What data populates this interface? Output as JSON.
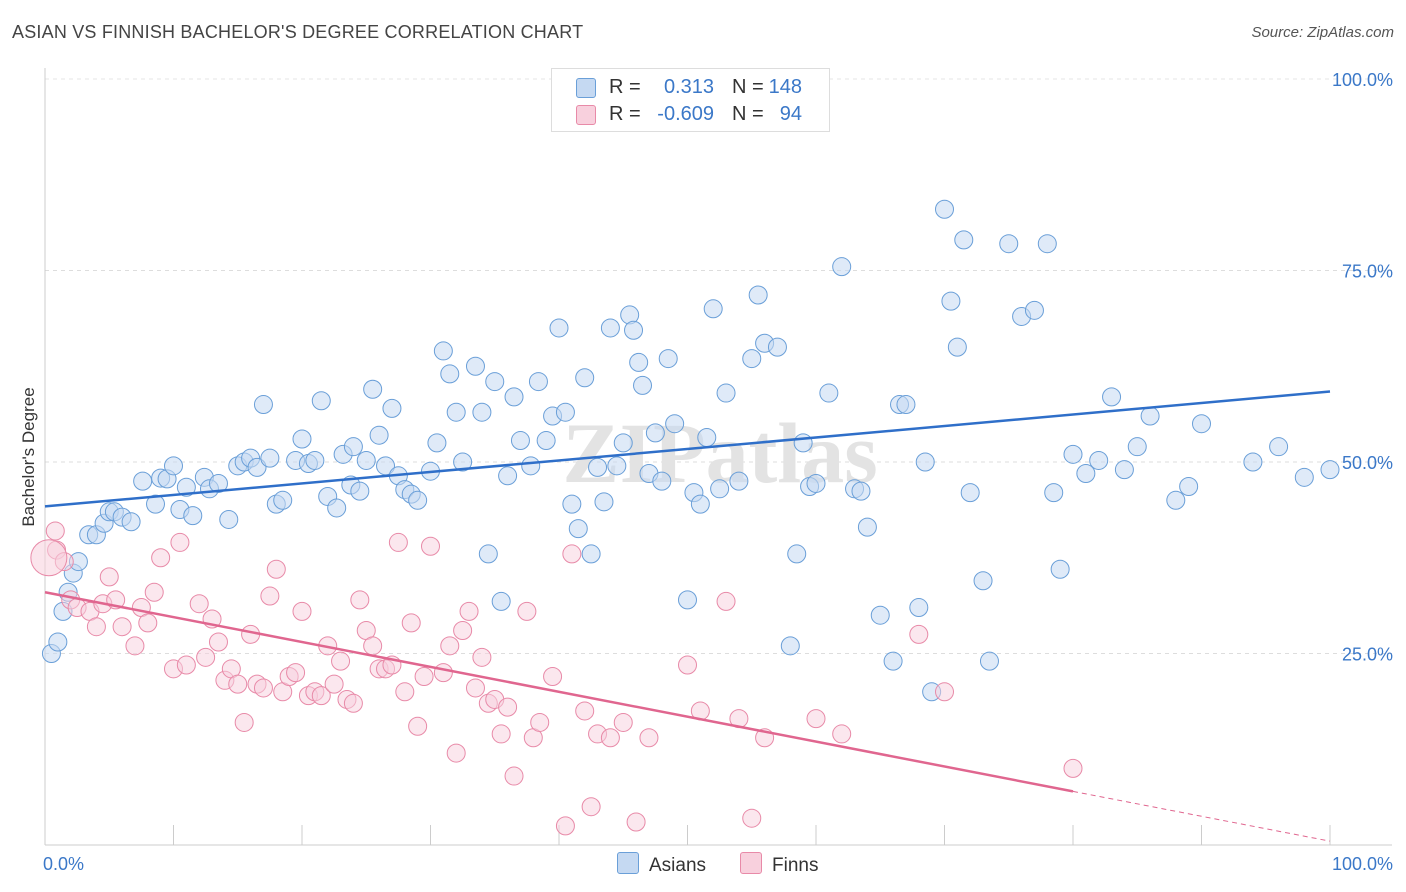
{
  "title": "ASIAN VS FINNISH BACHELOR'S DEGREE CORRELATION CHART",
  "source": "Source: ZipAtlas.com",
  "watermark": "ZIPatlas",
  "legend": {
    "rows": [
      {
        "r_label": "R =",
        "r_value": "0.313",
        "n_label": "N =",
        "n_value": "148",
        "color": "#6a9fd8"
      },
      {
        "r_label": "R =",
        "r_value": "-0.609",
        "n_label": "N =",
        "n_value": "94",
        "color": "#e88aa8"
      }
    ]
  },
  "bottom_legend": [
    {
      "label": "Asians",
      "color": "#6a9fd8"
    },
    {
      "label": "Finns",
      "color": "#e88aa8"
    }
  ],
  "chart_data": {
    "type": "scatter",
    "title": "ASIAN VS FINNISH BACHELOR'S DEGREE CORRELATION CHART",
    "xlabel": "",
    "ylabel": "Bachelor's Degree",
    "xlim": [
      0,
      100
    ],
    "ylim": [
      0,
      100
    ],
    "x_tick_labels": [
      "0.0%",
      "100.0%"
    ],
    "y_tick_labels": [
      "100.0%",
      "75.0%",
      "50.0%",
      "25.0%"
    ],
    "y_ticks": [
      100,
      75,
      50,
      25
    ],
    "grid": true,
    "series": [
      {
        "name": "Asians",
        "color": "#6a9fd8",
        "trend": {
          "x": [
            0,
            100
          ],
          "y": [
            44.2,
            59.2
          ],
          "style": "solid"
        },
        "points": [
          [
            0.5,
            25
          ],
          [
            1,
            26.5
          ],
          [
            1.4,
            30.5
          ],
          [
            1.8,
            33
          ],
          [
            2.2,
            35.5
          ],
          [
            2.6,
            37
          ],
          [
            3.4,
            40.5
          ],
          [
            4,
            40.5
          ],
          [
            4.6,
            42
          ],
          [
            5,
            43.5
          ],
          [
            5.4,
            43.5
          ],
          [
            6,
            42.8
          ],
          [
            6.7,
            42.2
          ],
          [
            7.6,
            47.5
          ],
          [
            8.6,
            44.5
          ],
          [
            9,
            47.9
          ],
          [
            9.5,
            47.8
          ],
          [
            10,
            49.5
          ],
          [
            10.5,
            43.8
          ],
          [
            11,
            46.7
          ],
          [
            11.5,
            43
          ],
          [
            12.4,
            48
          ],
          [
            12.8,
            46.5
          ],
          [
            13.5,
            47.2
          ],
          [
            14.3,
            42.5
          ],
          [
            15,
            49.5
          ],
          [
            15.5,
            50
          ],
          [
            16,
            50.5
          ],
          [
            16.5,
            49.3
          ],
          [
            17,
            57.5
          ],
          [
            17.5,
            50.5
          ],
          [
            18,
            44.5
          ],
          [
            18.5,
            45
          ],
          [
            19.5,
            50.2
          ],
          [
            20,
            53
          ],
          [
            20.5,
            49.8
          ],
          [
            21,
            50.2
          ],
          [
            21.5,
            58
          ],
          [
            22,
            45.5
          ],
          [
            22.7,
            44
          ],
          [
            23.2,
            51
          ],
          [
            23.8,
            47
          ],
          [
            24,
            52
          ],
          [
            24.5,
            46.2
          ],
          [
            25,
            50.2
          ],
          [
            25.5,
            59.5
          ],
          [
            26,
            53.5
          ],
          [
            26.5,
            49.5
          ],
          [
            27,
            57
          ],
          [
            27.5,
            48.2
          ],
          [
            28,
            46.4
          ],
          [
            28.5,
            45.8
          ],
          [
            29,
            45
          ],
          [
            30,
            48.8
          ],
          [
            30.5,
            52.5
          ],
          [
            31,
            64.5
          ],
          [
            31.5,
            61.5
          ],
          [
            32,
            56.5
          ],
          [
            32.5,
            50
          ],
          [
            33.5,
            62.5
          ],
          [
            34,
            56.5
          ],
          [
            34.5,
            38
          ],
          [
            35,
            60.5
          ],
          [
            35.5,
            31.8
          ],
          [
            36,
            48.2
          ],
          [
            36.5,
            58.5
          ],
          [
            37,
            52.8
          ],
          [
            37.8,
            49.5
          ],
          [
            38.4,
            60.5
          ],
          [
            39,
            52.8
          ],
          [
            39.5,
            56
          ],
          [
            40,
            67.5
          ],
          [
            40.5,
            56.5
          ],
          [
            41,
            44.5
          ],
          [
            41.5,
            41.3
          ],
          [
            42,
            61
          ],
          [
            42.5,
            38
          ],
          [
            43,
            49.3
          ],
          [
            43.5,
            44.8
          ],
          [
            44,
            67.5
          ],
          [
            44.5,
            49.5
          ],
          [
            45,
            52.5
          ],
          [
            45.5,
            69.2
          ],
          [
            45.8,
            67.2
          ],
          [
            46.2,
            63
          ],
          [
            46.5,
            60
          ],
          [
            47,
            48.5
          ],
          [
            47.5,
            53.8
          ],
          [
            48,
            47.5
          ],
          [
            48.5,
            63.5
          ],
          [
            49,
            55
          ],
          [
            50,
            32
          ],
          [
            50.5,
            46
          ],
          [
            51,
            44.5
          ],
          [
            51.5,
            53.2
          ],
          [
            52,
            70
          ],
          [
            52.5,
            46.5
          ],
          [
            53,
            59
          ],
          [
            54,
            47.5
          ],
          [
            55,
            63.5
          ],
          [
            55.5,
            71.8
          ],
          [
            56,
            65.5
          ],
          [
            57,
            65
          ],
          [
            58,
            26
          ],
          [
            58.5,
            38
          ],
          [
            59,
            52.5
          ],
          [
            59.5,
            46.8
          ],
          [
            60,
            47.2
          ],
          [
            61,
            59
          ],
          [
            62,
            75.5
          ],
          [
            63,
            46.5
          ],
          [
            63.5,
            46.2
          ],
          [
            64,
            41.5
          ],
          [
            65,
            30
          ],
          [
            66,
            24
          ],
          [
            66.5,
            57.5
          ],
          [
            67,
            57.5
          ],
          [
            68,
            31
          ],
          [
            68.5,
            50
          ],
          [
            69,
            20
          ],
          [
            70,
            83
          ],
          [
            70.5,
            71
          ],
          [
            71,
            65
          ],
          [
            71.5,
            79
          ],
          [
            72,
            46
          ],
          [
            73,
            34.5
          ],
          [
            73.5,
            24
          ],
          [
            75,
            78.5
          ],
          [
            76,
            69
          ],
          [
            77,
            69.8
          ],
          [
            78,
            78.5
          ],
          [
            78.5,
            46
          ],
          [
            79,
            36
          ],
          [
            80,
            51
          ],
          [
            81,
            48.5
          ],
          [
            82,
            50.2
          ],
          [
            83,
            58.5
          ],
          [
            84,
            49
          ],
          [
            85,
            52
          ],
          [
            86,
            56
          ],
          [
            88,
            45
          ],
          [
            89,
            46.8
          ],
          [
            90,
            55
          ],
          [
            94,
            50
          ],
          [
            96,
            52
          ],
          [
            98,
            48
          ],
          [
            100,
            49
          ]
        ]
      },
      {
        "name": "Finns",
        "color": "#e88aa8",
        "trend": {
          "x": [
            0,
            80
          ],
          "y": [
            33,
            7
          ],
          "dashed_extension": {
            "x": [
              80,
              100
            ],
            "y": [
              7,
              0.5
            ]
          }
        },
        "points": [
          [
            0.8,
            41
          ],
          [
            0.9,
            38.5
          ],
          [
            1.5,
            37
          ],
          [
            2,
            32
          ],
          [
            2.5,
            31
          ],
          [
            3.5,
            30.5
          ],
          [
            4,
            28.5
          ],
          [
            4.5,
            31.5
          ],
          [
            5,
            35
          ],
          [
            5.5,
            32
          ],
          [
            6,
            28.5
          ],
          [
            7,
            26
          ],
          [
            7.5,
            31
          ],
          [
            8,
            29
          ],
          [
            8.5,
            33
          ],
          [
            9,
            37.5
          ],
          [
            10,
            23
          ],
          [
            10.5,
            39.5
          ],
          [
            11,
            23.5
          ],
          [
            12,
            31.5
          ],
          [
            12.5,
            24.5
          ],
          [
            13,
            29.5
          ],
          [
            13.5,
            26.5
          ],
          [
            14,
            21.5
          ],
          [
            14.5,
            23
          ],
          [
            15,
            21
          ],
          [
            15.5,
            16
          ],
          [
            16,
            27.5
          ],
          [
            16.5,
            21
          ],
          [
            17,
            20.5
          ],
          [
            17.5,
            32.5
          ],
          [
            18,
            36
          ],
          [
            18.5,
            20
          ],
          [
            19,
            22
          ],
          [
            19.5,
            22.5
          ],
          [
            20,
            30.5
          ],
          [
            20.5,
            19.5
          ],
          [
            21,
            20
          ],
          [
            21.5,
            19.5
          ],
          [
            22,
            26
          ],
          [
            22.5,
            21
          ],
          [
            23,
            24
          ],
          [
            23.5,
            19
          ],
          [
            24,
            18.5
          ],
          [
            24.5,
            32
          ],
          [
            25,
            28
          ],
          [
            25.5,
            26
          ],
          [
            26,
            23
          ],
          [
            26.5,
            23
          ],
          [
            27,
            23.5
          ],
          [
            27.5,
            39.5
          ],
          [
            28,
            20
          ],
          [
            28.5,
            29
          ],
          [
            29,
            15.5
          ],
          [
            29.5,
            22
          ],
          [
            30,
            39
          ],
          [
            31,
            22.5
          ],
          [
            31.5,
            26
          ],
          [
            32,
            12
          ],
          [
            32.5,
            28
          ],
          [
            33,
            30.5
          ],
          [
            33.5,
            20.5
          ],
          [
            34,
            24.5
          ],
          [
            34.5,
            18.5
          ],
          [
            35,
            19
          ],
          [
            35.5,
            14.5
          ],
          [
            36,
            18
          ],
          [
            36.5,
            9
          ],
          [
            37.5,
            30.5
          ],
          [
            38,
            14
          ],
          [
            38.5,
            16
          ],
          [
            39.5,
            22
          ],
          [
            40.5,
            2.5
          ],
          [
            41,
            38
          ],
          [
            42,
            17.5
          ],
          [
            42.5,
            5
          ],
          [
            43,
            14.5
          ],
          [
            44,
            14
          ],
          [
            45,
            16
          ],
          [
            46,
            3
          ],
          [
            47,
            14
          ],
          [
            50,
            23.5
          ],
          [
            51,
            17.5
          ],
          [
            53,
            31.8
          ],
          [
            54,
            16.5
          ],
          [
            55,
            3.5
          ],
          [
            56,
            14
          ],
          [
            60,
            16.5
          ],
          [
            62,
            14.5
          ],
          [
            68,
            27.5
          ],
          [
            70,
            20
          ],
          [
            80,
            10
          ]
        ]
      }
    ]
  }
}
